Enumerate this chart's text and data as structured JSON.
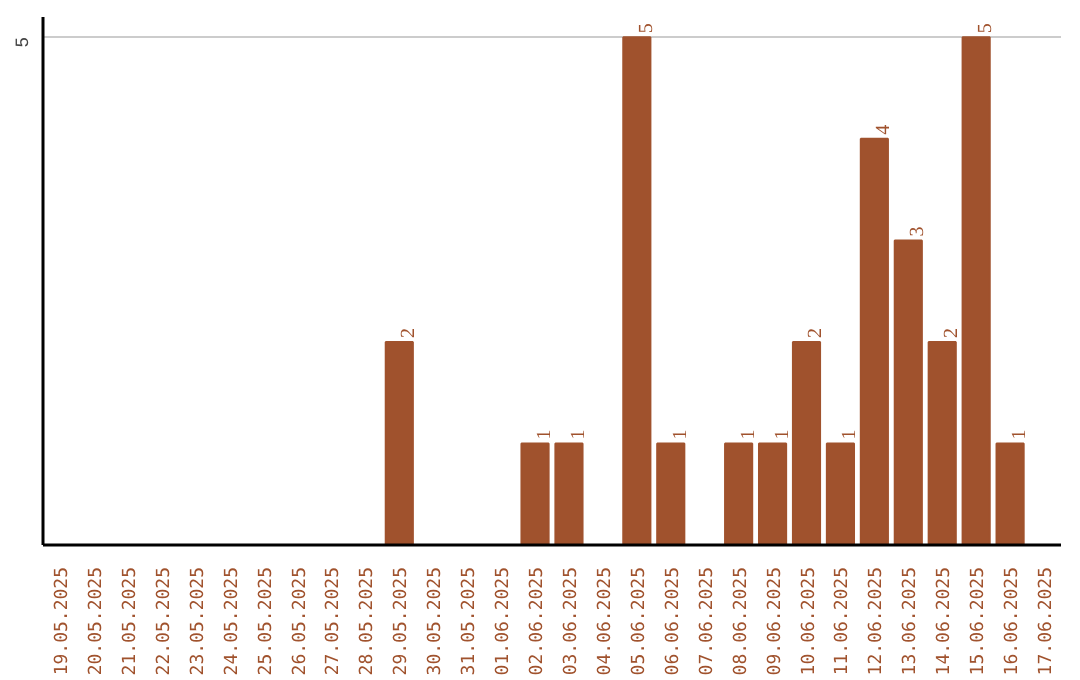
{
  "chart_data": {
    "type": "bar",
    "categories": [
      "19.05.2025",
      "20.05.2025",
      "21.05.2025",
      "22.05.2025",
      "23.05.2025",
      "24.05.2025",
      "25.05.2025",
      "26.05.2025",
      "27.05.2025",
      "28.05.2025",
      "29.05.2025",
      "30.05.2025",
      "31.05.2025",
      "01.06.2025",
      "02.06.2025",
      "03.06.2025",
      "04.06.2025",
      "05.06.2025",
      "06.06.2025",
      "07.06.2025",
      "08.06.2025",
      "09.06.2025",
      "10.06.2025",
      "11.06.2025",
      "12.06.2025",
      "13.06.2025",
      "14.06.2025",
      "15.06.2025",
      "16.06.2025",
      "17.06.2025"
    ],
    "values": [
      0,
      0,
      0,
      0,
      0,
      0,
      0,
      0,
      0,
      0,
      2,
      0,
      0,
      0,
      1,
      1,
      0,
      5,
      1,
      0,
      1,
      1,
      2,
      1,
      4,
      3,
      2,
      5,
      1,
      0
    ],
    "value_labels": [
      null,
      null,
      null,
      null,
      null,
      null,
      null,
      null,
      null,
      null,
      "2",
      null,
      null,
      null,
      "1",
      "1",
      null,
      "5",
      "1",
      null,
      "1",
      "1",
      "2",
      "1",
      "4",
      "3",
      "2",
      "5",
      "1",
      null
    ],
    "color": "#a0522d",
    "ylim": [
      0,
      5.2
    ],
    "yticks": [
      5
    ],
    "grid": "y"
  }
}
